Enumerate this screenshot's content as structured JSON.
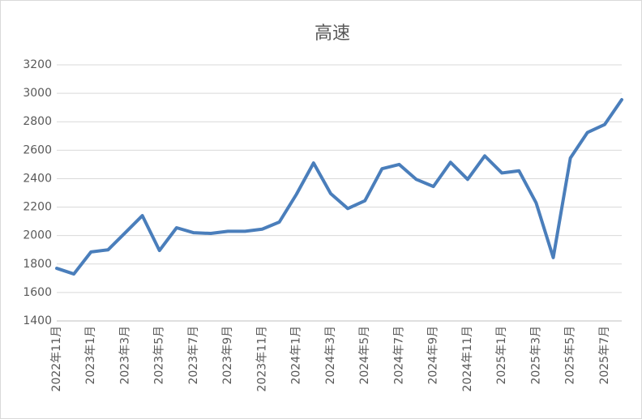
{
  "chart_data": {
    "type": "line",
    "title": "高速",
    "categories": [
      "2022年11月",
      null,
      "2023年1月",
      null,
      "2023年3月",
      null,
      "2023年5月",
      null,
      "2023年7月",
      null,
      "2023年9月",
      null,
      "2023年11月",
      null,
      "2024年1月",
      null,
      "2024年3月",
      null,
      "2024年5月",
      null,
      "2024年7月",
      null,
      "2024年9月",
      null,
      "2024年11月",
      null,
      "2025年1月",
      null,
      "2025年3月",
      null,
      "2025年5月",
      null,
      "2025年7月",
      null
    ],
    "series": [
      {
        "color": "#4a7ebb",
        "values": [
          1770,
          1730,
          1885,
          1900,
          2020,
          2140,
          1895,
          2055,
          2020,
          2015,
          2030,
          2030,
          2045,
          2095,
          2290,
          2510,
          2295,
          2190,
          2245,
          2470,
          2500,
          2395,
          2345,
          2515,
          2395,
          2560,
          2440,
          2455,
          2230,
          1845,
          2545,
          2725,
          2780,
          2955
        ]
      }
    ],
    "ylim": [
      1400,
      3200
    ],
    "yticks": [
      1400,
      1600,
      1800,
      2000,
      2200,
      2400,
      2600,
      2800,
      3000,
      3200
    ],
    "grid": true
  }
}
